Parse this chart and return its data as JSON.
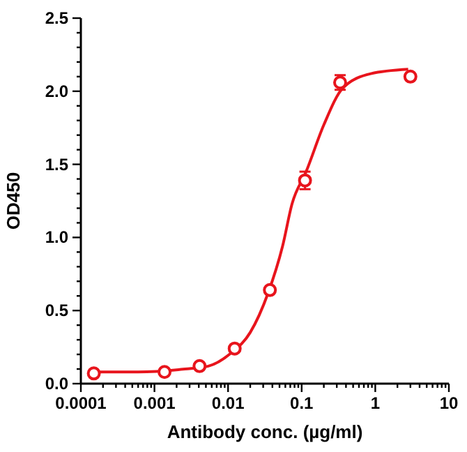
{
  "chart_data": {
    "type": "scatter",
    "xlabel": "Antibody conc. (µg/ml)",
    "ylabel": "OD450",
    "log": "x",
    "grid": false,
    "xlim": [
      0.0001,
      10
    ],
    "ylim": [
      0,
      2.5
    ],
    "xticks": [
      {
        "value": 0.0001,
        "label": "0.0001"
      },
      {
        "value": 0.0002,
        "label": null
      },
      {
        "value": 0.0003,
        "label": null
      },
      {
        "value": 0.0004,
        "label": null
      },
      {
        "value": 0.0005,
        "label": null
      },
      {
        "value": 0.0006,
        "label": null
      },
      {
        "value": 0.0007,
        "label": null
      },
      {
        "value": 0.0008,
        "label": null
      },
      {
        "value": 0.0009,
        "label": null
      },
      {
        "value": 0.001,
        "label": "0.001"
      },
      {
        "value": 0.002,
        "label": null
      },
      {
        "value": 0.003,
        "label": null
      },
      {
        "value": 0.004,
        "label": null
      },
      {
        "value": 0.005,
        "label": null
      },
      {
        "value": 0.006,
        "label": null
      },
      {
        "value": 0.007,
        "label": null
      },
      {
        "value": 0.008,
        "label": null
      },
      {
        "value": 0.009,
        "label": null
      },
      {
        "value": 0.01,
        "label": "0.01"
      },
      {
        "value": 0.02,
        "label": null
      },
      {
        "value": 0.03,
        "label": null
      },
      {
        "value": 0.04,
        "label": null
      },
      {
        "value": 0.05,
        "label": null
      },
      {
        "value": 0.06,
        "label": null
      },
      {
        "value": 0.07,
        "label": null
      },
      {
        "value": 0.08,
        "label": null
      },
      {
        "value": 0.09,
        "label": null
      },
      {
        "value": 0.1,
        "label": "0.1"
      },
      {
        "value": 0.2,
        "label": null
      },
      {
        "value": 0.3,
        "label": null
      },
      {
        "value": 0.4,
        "label": null
      },
      {
        "value": 0.5,
        "label": null
      },
      {
        "value": 0.6,
        "label": null
      },
      {
        "value": 0.7,
        "label": null
      },
      {
        "value": 0.8,
        "label": null
      },
      {
        "value": 0.9,
        "label": null
      },
      {
        "value": 1,
        "label": "1"
      },
      {
        "value": 2,
        "label": null
      },
      {
        "value": 3,
        "label": null
      },
      {
        "value": 4,
        "label": null
      },
      {
        "value": 5,
        "label": null
      },
      {
        "value": 6,
        "label": null
      },
      {
        "value": 7,
        "label": null
      },
      {
        "value": 8,
        "label": null
      },
      {
        "value": 9,
        "label": null
      },
      {
        "value": 10,
        "label": "10"
      }
    ],
    "yticks": [
      {
        "value": 0,
        "label": "0.0"
      },
      {
        "value": 0.1,
        "label": null
      },
      {
        "value": 0.2,
        "label": null
      },
      {
        "value": 0.3,
        "label": null
      },
      {
        "value": 0.4,
        "label": null
      },
      {
        "value": 0.5,
        "label": "0.5"
      },
      {
        "value": 0.6,
        "label": null
      },
      {
        "value": 0.7,
        "label": null
      },
      {
        "value": 0.8,
        "label": null
      },
      {
        "value": 0.9,
        "label": null
      },
      {
        "value": 1,
        "label": "1.0"
      },
      {
        "value": 1.1,
        "label": null
      },
      {
        "value": 1.2,
        "label": null
      },
      {
        "value": 1.3,
        "label": null
      },
      {
        "value": 1.4,
        "label": null
      },
      {
        "value": 1.5,
        "label": "1.5"
      },
      {
        "value": 1.6,
        "label": null
      },
      {
        "value": 1.7,
        "label": null
      },
      {
        "value": 1.8,
        "label": null
      },
      {
        "value": 1.9,
        "label": null
      },
      {
        "value": 2,
        "label": "2.0"
      },
      {
        "value": 2.1,
        "label": null
      },
      {
        "value": 2.2,
        "label": null
      },
      {
        "value": 2.3,
        "label": null
      },
      {
        "value": 2.4,
        "label": null
      },
      {
        "value": 2.5,
        "label": "2.5"
      }
    ],
    "series": [
      {
        "type": "line",
        "color": "#e8141c",
        "marker": "none",
        "line_style": "solid",
        "x": [
          0.000148,
          0.0006,
          0.0026,
          0.0054,
          0.011,
          0.02,
          0.035,
          0.055,
          0.074,
          0.115,
          0.2,
          0.36,
          0.87,
          2.8
        ],
        "values": [
          0.08,
          0.08,
          0.1,
          0.12,
          0.21,
          0.35,
          0.62,
          0.94,
          1.23,
          1.45,
          1.77,
          2.02,
          2.12,
          2.15
        ]
      },
      {
        "color": "#e8141c",
        "marker": "circle",
        "x": [
          0.00015,
          0.00137,
          0.0041,
          0.0123,
          0.037,
          0.111,
          0.333,
          3
        ],
        "values": [
          0.07,
          0.08,
          0.12,
          0.24,
          0.64,
          1.39,
          2.06,
          2.1
        ],
        "errors": [
          null,
          null,
          null,
          null,
          null,
          0.06,
          0.05,
          null
        ]
      }
    ]
  }
}
